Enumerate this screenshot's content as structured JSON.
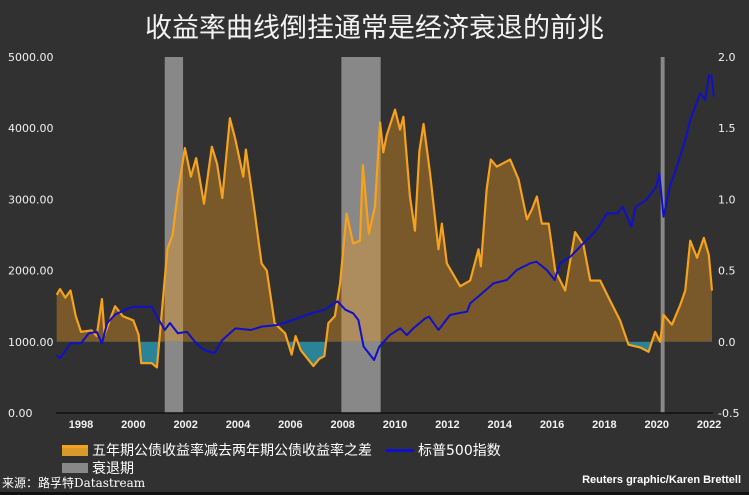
{
  "chart_data": {
    "type": "line",
    "title": "收益率曲线倒挂通常是经济衰退的前兆",
    "x_range": [
      1997.0,
      2022.2
    ],
    "x_ticks": [
      "1998",
      "2000",
      "2002",
      "2004",
      "2006",
      "2008",
      "2010",
      "2012",
      "2014",
      "2016",
      "2018",
      "2020",
      "2022"
    ],
    "left_axis": {
      "range": [
        0,
        5000
      ],
      "ticks": [
        "0.00",
        "1000.00",
        "2000.00",
        "3000.00",
        "4000.00",
        "5000.00"
      ]
    },
    "right_axis": {
      "range": [
        -0.5,
        2.0
      ],
      "ticks": [
        "-0.5",
        "0.0",
        "0.5",
        "1.0",
        "1.5",
        "2.0"
      ]
    },
    "recessions": [
      [
        2001.2,
        2001.9
      ],
      [
        2007.95,
        2009.45
      ],
      [
        2020.15,
        2020.3
      ]
    ],
    "series": [
      {
        "name": "五年期公债收益率减去两年期公债收益率之差",
        "axis": "right",
        "color": "#f5a21f",
        "negative_fill": "#2a8396",
        "x": [
          1997.07,
          1997.2,
          1997.4,
          1997.6,
          1997.8,
          1998.0,
          1998.4,
          1998.6,
          1998.8,
          1998.9,
          1999.3,
          1999.6,
          2000.0,
          2000.2,
          2000.3,
          2000.7,
          2000.9,
          2001.08,
          2001.3,
          2001.5,
          2001.7,
          2001.97,
          2002.2,
          2002.4,
          2002.7,
          2003.0,
          2003.2,
          2003.4,
          2003.69,
          2003.9,
          2004.2,
          2004.3,
          2004.6,
          2004.9,
          2005.1,
          2005.4,
          2005.8,
          2006.05,
          2006.2,
          2006.4,
          2006.88,
          2007.1,
          2007.3,
          2007.45,
          2007.7,
          2007.9,
          2008.15,
          2008.4,
          2008.66,
          2008.77,
          2009.0,
          2009.23,
          2009.43,
          2009.55,
          2009.68,
          2010.0,
          2010.19,
          2010.32,
          2010.57,
          2010.76,
          2010.93,
          2011.09,
          2011.34,
          2011.66,
          2011.79,
          2011.98,
          2012.49,
          2012.87,
          2013.19,
          2013.28,
          2013.5,
          2013.66,
          2013.89,
          2014.4,
          2014.72,
          2015.04,
          2015.23,
          2015.42,
          2015.61,
          2015.87,
          2016.12,
          2016.5,
          2016.88,
          2017.2,
          2017.46,
          2017.84,
          2018.16,
          2018.6,
          2018.92,
          2019.37,
          2019.69,
          2019.94,
          2020.13,
          2020.26,
          2020.58,
          2020.9,
          2021.09,
          2021.28,
          2021.54,
          2021.8,
          2021.99,
          2022.11
        ],
        "y": [
          0.33,
          0.37,
          0.31,
          0.36,
          0.18,
          0.07,
          0.08,
          0.04,
          0.3,
          0.05,
          0.25,
          0.18,
          0.15,
          0.05,
          -0.15,
          -0.15,
          -0.18,
          0.19,
          0.65,
          0.75,
          1.05,
          1.36,
          1.16,
          1.29,
          0.97,
          1.37,
          1.25,
          1.01,
          1.57,
          1.42,
          1.16,
          1.35,
          0.96,
          0.55,
          0.5,
          0.13,
          0.06,
          -0.09,
          0.04,
          -0.06,
          -0.17,
          -0.12,
          -0.1,
          0.13,
          0.18,
          0.41,
          0.9,
          0.69,
          0.71,
          1.24,
          0.76,
          0.95,
          1.54,
          1.33,
          1.45,
          1.63,
          1.49,
          1.58,
          1.02,
          0.78,
          1.34,
          1.53,
          1.18,
          0.65,
          0.83,
          0.55,
          0.39,
          0.43,
          0.65,
          0.53,
          1.07,
          1.28,
          1.23,
          1.28,
          1.14,
          0.86,
          0.93,
          1.02,
          0.83,
          0.83,
          0.5,
          0.36,
          0.77,
          0.68,
          0.43,
          0.43,
          0.31,
          0.15,
          -0.02,
          -0.04,
          -0.07,
          0.07,
          0.0,
          0.19,
          0.12,
          0.26,
          0.36,
          0.71,
          0.59,
          0.73,
          0.61,
          0.36
        ]
      },
      {
        "name": "标普500指数",
        "axis": "left",
        "color": "#1010c8",
        "x": [
          1997.07,
          1997.2,
          1997.6,
          1998.0,
          1998.3,
          1998.6,
          1998.8,
          1999.0,
          1999.3,
          1999.7,
          2000.0,
          2000.3,
          2000.7,
          2000.9,
          2001.2,
          2001.4,
          2001.7,
          2002.05,
          2002.4,
          2002.7,
          2003.1,
          2003.4,
          2003.9,
          2004.5,
          2004.9,
          2005.5,
          2006.1,
          2006.8,
          2007.3,
          2007.6,
          2007.8,
          2008.1,
          2008.4,
          2008.6,
          2008.8,
          2009.2,
          2009.4,
          2009.8,
          2010.2,
          2010.45,
          2010.7,
          2011.15,
          2011.3,
          2011.66,
          2012.1,
          2012.4,
          2012.75,
          2012.87,
          2013.25,
          2013.76,
          2014.27,
          2014.65,
          2015.16,
          2015.4,
          2015.8,
          2016.1,
          2016.3,
          2016.7,
          2017.2,
          2017.7,
          2018.1,
          2018.5,
          2018.7,
          2019.03,
          2019.2,
          2019.6,
          2019.98,
          2020.1,
          2020.26,
          2020.5,
          2020.77,
          2021.09,
          2021.28,
          2021.66,
          2021.85,
          2022.0,
          2022.1,
          2022.18
        ],
        "y": [
          815,
          768,
          979,
          979,
          1120,
          1140,
          979,
          1264,
          1381,
          1451,
          1493,
          1493,
          1493,
          1357,
          1166,
          1264,
          1120,
          1140,
          979,
          885,
          840,
          1026,
          1189,
          1166,
          1213,
          1236,
          1306,
          1400,
          1451,
          1521,
          1568,
          1451,
          1400,
          1306,
          932,
          745,
          932,
          1095,
          1189,
          1095,
          1189,
          1329,
          1353,
          1166,
          1376,
          1400,
          1423,
          1540,
          1657,
          1821,
          1868,
          2008,
          2102,
          2125,
          2008,
          1868,
          2102,
          2196,
          2383,
          2570,
          2804,
          2804,
          2898,
          2617,
          2898,
          2991,
          3179,
          3366,
          2757,
          3179,
          3460,
          3834,
          4115,
          4490,
          4396,
          4747,
          4724,
          4443
        ]
      }
    ],
    "legend": [
      {
        "label": "五年期公债收益率减去两年期公债收益率之差"
      },
      {
        "label": "标普500指数"
      },
      {
        "label": "衰退期"
      }
    ],
    "legend_placement": "bottom-left"
  },
  "footer": {
    "source": "来源：路孚特Datastream",
    "credit": "Reuters graphic/Karen Brettell"
  },
  "colors": {
    "background": "#313131",
    "recession": "#888888",
    "positive_fill": "rgba(230,150,30,0.4)"
  }
}
